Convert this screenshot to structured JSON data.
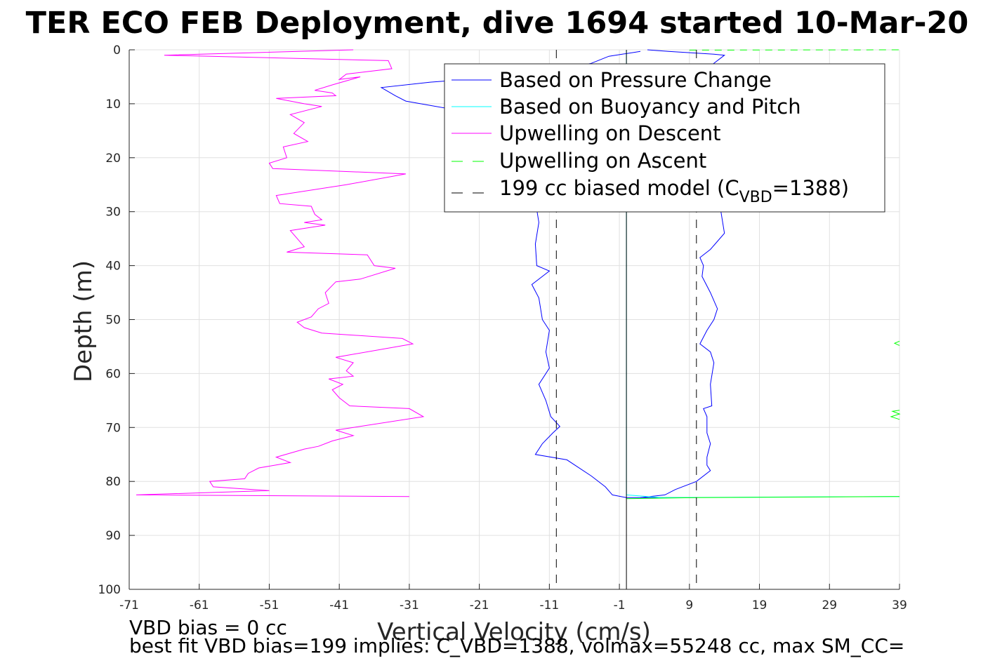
{
  "chart_data": {
    "type": "line",
    "title": "TER ECO FEB Deployment, dive 1694 started 10-Mar-20",
    "xlabel": "Vertical Velocity (cm/s)",
    "ylabel": "Depth (m)",
    "xlim": [
      -71,
      39
    ],
    "ylim": [
      0,
      100
    ],
    "y_reversed": true,
    "grid": true,
    "xticks": [
      "-71",
      "-61",
      "-51",
      "-41",
      "-31",
      "-21",
      "-11",
      "-1",
      "9",
      "19",
      "29",
      "39"
    ],
    "yticks": [
      "0",
      "10",
      "20",
      "30",
      "40",
      "50",
      "60",
      "70",
      "80",
      "90",
      "100"
    ],
    "legend": {
      "placement": "top-right",
      "entries": [
        {
          "label": "Based on Pressure Change",
          "color": "#0000ff",
          "style": "solid"
        },
        {
          "label": "Based on Buoyancy and Pitch",
          "color": "#00ffff",
          "style": "solid"
        },
        {
          "label": "Upwelling on Descent",
          "color": "#ff00ff",
          "style": "solid"
        },
        {
          "label": "Upwelling on Ascent",
          "color": "#00ff00",
          "style": "dashed"
        },
        {
          "label_main": "199 cc biased model (C",
          "label_sub": "VBD",
          "label_tail": "=1388)",
          "color": "#000000",
          "style": "dashed"
        }
      ]
    },
    "series": [
      {
        "name": "Based on Pressure Change",
        "color": "#0000ff",
        "dash": "",
        "points": [
          [
            2,
            0.3
          ],
          [
            -2.5,
            1.2
          ],
          [
            -5,
            2.5
          ],
          [
            -10,
            3.8
          ],
          [
            -20,
            5.2
          ],
          [
            -28,
            6
          ],
          [
            -35,
            7
          ],
          [
            -33,
            8.5
          ],
          [
            -31.5,
            9.5
          ],
          [
            -25,
            11
          ],
          [
            -18,
            13
          ],
          [
            -13,
            16
          ],
          [
            -12,
            20
          ],
          [
            -12.5,
            24
          ],
          [
            -13,
            28
          ],
          [
            -12.5,
            32
          ],
          [
            -13,
            36
          ],
          [
            -12.8,
            40
          ],
          [
            -11,
            41
          ],
          [
            -13.5,
            43.5
          ],
          [
            -12.5,
            46
          ],
          [
            -12,
            50
          ],
          [
            -11,
            52
          ],
          [
            -11.5,
            56
          ],
          [
            -11,
            59
          ],
          [
            -12.5,
            62
          ],
          [
            -11.5,
            65
          ],
          [
            -10.8,
            68
          ],
          [
            -9.5,
            69.8
          ],
          [
            -10.5,
            71
          ],
          [
            -12,
            73
          ],
          [
            -13,
            75
          ],
          [
            -8.5,
            76
          ],
          [
            -5,
            79
          ],
          [
            -3,
            81
          ],
          [
            -2,
            82.5
          ],
          [
            0,
            83
          ],
          [
            10,
            83
          ]
        ]
      },
      {
        "name": "Based on Pressure Change",
        "color": "#0000ff",
        "dash": "",
        "points": [
          [
            3,
            0
          ],
          [
            6,
            0.3
          ],
          [
            12.5,
            0.8
          ],
          [
            14,
            1
          ],
          [
            12,
            3
          ],
          [
            13,
            5
          ],
          [
            12.5,
            10
          ],
          [
            13,
            14
          ],
          [
            12.5,
            18
          ],
          [
            13,
            22
          ],
          [
            12.5,
            26
          ],
          [
            13.5,
            30
          ],
          [
            14,
            34
          ],
          [
            12,
            37
          ],
          [
            10.5,
            38.5
          ],
          [
            11,
            40
          ],
          [
            10.8,
            42
          ],
          [
            12,
            45
          ],
          [
            13,
            48
          ],
          [
            12.5,
            50
          ],
          [
            11.5,
            52
          ],
          [
            10.5,
            54.5
          ],
          [
            12,
            56
          ],
          [
            12.5,
            58
          ],
          [
            12,
            62
          ],
          [
            12.2,
            66
          ],
          [
            11,
            66.5
          ],
          [
            11.5,
            68
          ],
          [
            11.5,
            71
          ],
          [
            12,
            73
          ],
          [
            11.5,
            75.5
          ],
          [
            11.5,
            77
          ],
          [
            12,
            78
          ],
          [
            10,
            80
          ],
          [
            7,
            81.5
          ],
          [
            5.5,
            82.5
          ],
          [
            2,
            83
          ]
        ]
      },
      {
        "name": "Based on Buoyancy and Pitch",
        "color": "#00ffff",
        "dash": "",
        "points": [
          [
            0,
            0.1
          ],
          [
            0,
            10
          ],
          [
            0,
            20
          ],
          [
            0,
            40
          ],
          [
            0,
            60
          ],
          [
            0,
            82.5
          ],
          [
            5,
            83
          ],
          [
            20,
            82.9
          ],
          [
            39,
            82.8
          ]
        ]
      },
      {
        "name": "Upwelling on Descent",
        "color": "#ff00ff",
        "dash": "",
        "points": [
          [
            -39,
            0
          ],
          [
            -66,
            1
          ],
          [
            -34,
            2
          ],
          [
            -33.5,
            3.5
          ],
          [
            -40,
            4.5
          ],
          [
            -41,
            5.5
          ],
          [
            -38,
            5
          ],
          [
            -42,
            6.5
          ],
          [
            -44.5,
            7.5
          ],
          [
            -42,
            8
          ],
          [
            -41.5,
            8.5
          ],
          [
            -50,
            9
          ],
          [
            -46,
            10
          ],
          [
            -43.5,
            10.5
          ],
          [
            -48,
            12
          ],
          [
            -46,
            13.5
          ],
          [
            -47.5,
            15.5
          ],
          [
            -45.5,
            17
          ],
          [
            -49,
            18
          ],
          [
            -48.5,
            20
          ],
          [
            -51,
            21
          ],
          [
            -50.5,
            22
          ],
          [
            -31.5,
            23
          ],
          [
            -40,
            25
          ],
          [
            -50,
            27
          ],
          [
            -49.5,
            28.5
          ],
          [
            -45,
            29
          ],
          [
            -44.5,
            30.5
          ],
          [
            -43.5,
            31.5
          ],
          [
            -46,
            32
          ],
          [
            -43,
            32.5
          ],
          [
            -48,
            33.5
          ],
          [
            -47,
            35
          ],
          [
            -46,
            36.5
          ],
          [
            -48.5,
            37.5
          ],
          [
            -37,
            38
          ],
          [
            -36,
            40
          ],
          [
            -33,
            40.5
          ],
          [
            -38,
            42.5
          ],
          [
            -41.5,
            43
          ],
          [
            -43,
            45
          ],
          [
            -42.5,
            47
          ],
          [
            -44,
            48
          ],
          [
            -45,
            49.5
          ],
          [
            -47,
            50.5
          ],
          [
            -46,
            51.5
          ],
          [
            -43.5,
            52.5
          ],
          [
            -32,
            53.5
          ],
          [
            -30.5,
            54.5
          ],
          [
            -41.5,
            57
          ],
          [
            -39,
            58
          ],
          [
            -40,
            59.5
          ],
          [
            -39,
            60.5
          ],
          [
            -42.5,
            61
          ],
          [
            -40.5,
            62
          ],
          [
            -42,
            63
          ],
          [
            -41,
            64.5
          ],
          [
            -39.5,
            66
          ],
          [
            -31,
            66.5
          ],
          [
            -29,
            68
          ],
          [
            -41.5,
            70.5
          ],
          [
            -39,
            71.5
          ],
          [
            -42,
            72.5
          ],
          [
            -44,
            73.5
          ],
          [
            -46,
            74
          ],
          [
            -50,
            75.5
          ],
          [
            -48,
            76.5
          ],
          [
            -52.5,
            77.5
          ],
          [
            -54,
            78.5
          ],
          [
            -54.5,
            79.5
          ],
          [
            -59.5,
            80
          ],
          [
            -59,
            81
          ],
          [
            -51,
            81.7
          ],
          [
            -70,
            82.5
          ],
          [
            -31,
            82.8
          ]
        ]
      },
      {
        "name": "Upwelling on Ascent",
        "color": "#00ff00",
        "dash": "10,8",
        "points": [
          [
            9,
            0.05
          ],
          [
            39,
            0
          ]
        ]
      },
      {
        "name": "Upwelling on Ascent",
        "color": "#00ff00",
        "dash": "",
        "points": [
          [
            0,
            83.2
          ],
          [
            10,
            83
          ],
          [
            25,
            82.9
          ],
          [
            39,
            82.8
          ]
        ]
      },
      {
        "name": "Upwelling on Ascent",
        "color": "#00ff00",
        "dash": "",
        "points": [
          [
            39,
            54
          ],
          [
            38.3,
            54.4
          ],
          [
            39,
            54.8
          ]
        ]
      },
      {
        "name": "Upwelling on Ascent",
        "color": "#00ff00",
        "dash": "",
        "points": [
          [
            39,
            66.8
          ],
          [
            38,
            67
          ],
          [
            39,
            67.5
          ],
          [
            37.8,
            68
          ],
          [
            39,
            68.5
          ]
        ]
      },
      {
        "name": "199 cc biased model (C_VBD=1388)",
        "color": "#000000",
        "dash": "12,10",
        "points": [
          [
            -10,
            0
          ],
          [
            -10,
            100
          ]
        ]
      },
      {
        "name": "199 cc biased model (C_VBD=1388)",
        "color": "#000000",
        "dash": "12,10",
        "points": [
          [
            10,
            0
          ],
          [
            10,
            100
          ]
        ]
      },
      {
        "name": "",
        "color": "#000000",
        "dash": "",
        "points": [
          [
            0,
            0
          ],
          [
            0,
            100
          ]
        ]
      }
    ]
  },
  "footer": {
    "line1": "VBD bias = 0 cc",
    "line2": "best fit VBD bias=199 implies: C_VBD=1388, volmax=55248 cc, max SM_CC="
  }
}
